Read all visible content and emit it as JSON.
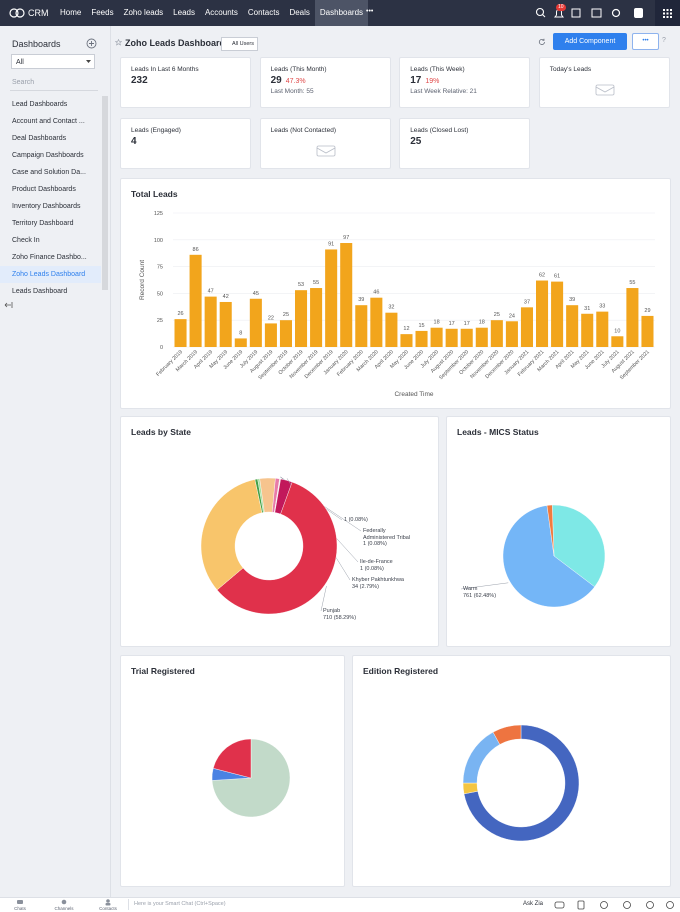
{
  "nav": {
    "brand": "CRM",
    "tabs": [
      "Home",
      "Feeds",
      "Zoho leads",
      "Leads",
      "Accounts",
      "Contacts",
      "Deals",
      "Dashboards"
    ],
    "active_tab": "Dashboards",
    "more": "•••",
    "badge": 10
  },
  "sidebar": {
    "title": "Dashboards",
    "filter": "All",
    "search": "Search",
    "items": [
      "Lead Dashboards",
      "Account and Contact ...",
      "Deal Dashboards",
      "Campaign Dashboards",
      "Case and Solution Da...",
      "Product Dashboards",
      "Inventory Dashboards",
      "Territory Dashboard",
      "Check In",
      "Zoho Finance Dashbo...",
      "Zoho Leads Dashboard",
      "Leads Dashboard"
    ],
    "active_item": "Zoho Leads Dashboard"
  },
  "header": {
    "title": "Zoho Leads Dashboard",
    "users": "All Users",
    "add_button": "Add Component",
    "more": "•••",
    "help": "?"
  },
  "cards": [
    {
      "title": "Leads In Last 6 Months",
      "value": 232
    },
    {
      "title": "Leads (This Month)",
      "value": 29,
      "change": "47.3%",
      "sub": "Last Month: 55"
    },
    {
      "title": "Leads (This Week)",
      "value": 17,
      "change": "19%",
      "sub": "Last Week Relative: 21"
    },
    {
      "title": "Today's Leads"
    },
    {
      "title": "Leads (Engaged)",
      "value": 4
    },
    {
      "title": "Leads (Not Contacted)"
    },
    {
      "title": "Leads (Closed Lost)",
      "value": 25
    }
  ],
  "footer": {
    "tabs": [
      "Chats",
      "Channels",
      "Contacts"
    ],
    "chat_placeholder": "Here is your Smart Chat (Ctrl+Space)",
    "zia": "Ask Zia"
  },
  "chart_data": [
    {
      "type": "bar",
      "title": "Total Leads",
      "x_label": "Created Time",
      "y_label": "Record Count",
      "categories": [
        "February 2019",
        "March 2019",
        "April 2019",
        "May 2019",
        "June 2019",
        "July 2019",
        "August 2019",
        "September 2019",
        "October 2019",
        "November 2019",
        "December 2019",
        "January 2020",
        "February 2020",
        "March 2020",
        "April 2020",
        "May 2020",
        "June 2020",
        "July 2020",
        "August 2020",
        "September 2020",
        "October 2020",
        "November 2020",
        "December 2020",
        "January 2021",
        "February 2021",
        "March 2021",
        "April 2021",
        "May 2021",
        "June 2021",
        "July 2021",
        "August 2021",
        "September 2021"
      ],
      "values": [
        26,
        86,
        47,
        42,
        8,
        45,
        22,
        25,
        53,
        55,
        91,
        97,
        39,
        46,
        32,
        12,
        15,
        18,
        17,
        17,
        18,
        25,
        24,
        37,
        62,
        61,
        39,
        31,
        33,
        10,
        55,
        29
      ],
      "color": "#f2a51c",
      "ylim": [
        0,
        125
      ],
      "yticks": [
        0,
        25,
        50,
        75,
        100,
        125
      ],
      "grid": true
    },
    {
      "type": "donut",
      "title": "Leads by State",
      "categories": [
        null,
        null,
        null,
        null,
        null,
        "Federally Administered Tribal",
        "Ile-de-France",
        "Khyber Pakhtunkhwa",
        "Punjab",
        null
      ],
      "values": [
        8,
        6,
        45,
        12,
        1,
        1,
        1,
        34,
        710,
        400
      ],
      "value_labels": [
        null,
        null,
        null,
        null,
        "1 (0.08%)",
        "1 (0.08%)",
        "1 (0.08%)",
        "34 (2.79%)",
        "710 (58.29%)",
        null
      ],
      "colors": [
        "#43a047",
        "#a8e0a0",
        "#f6c48e",
        "#e87aa8",
        "#f39c12",
        "#48c9b0",
        "#5dade2",
        "#c2185b",
        "#e0314b",
        "#f8c56b"
      ]
    },
    {
      "type": "pie",
      "title": "Leads - MICS Status",
      "categories": [
        null,
        "Warm",
        null
      ],
      "values": [
        437,
        761,
        20
      ],
      "value_labels": [
        null,
        "761 (62.48%)",
        null
      ],
      "colors": [
        "#7ee8e6",
        "#74b6f7",
        "#f07b3f"
      ]
    },
    {
      "type": "pie",
      "title": "Trial Registered",
      "values": [
        74,
        5,
        21
      ],
      "colors": [
        "#c2dac9",
        "#4a82e3",
        "#e0314b"
      ]
    },
    {
      "type": "donut",
      "title": "Edition Registered",
      "values": [
        72,
        3,
        17,
        8
      ],
      "colors": [
        "#4466c0",
        "#f4c542",
        "#79b4f2",
        "#ee7440"
      ]
    }
  ]
}
